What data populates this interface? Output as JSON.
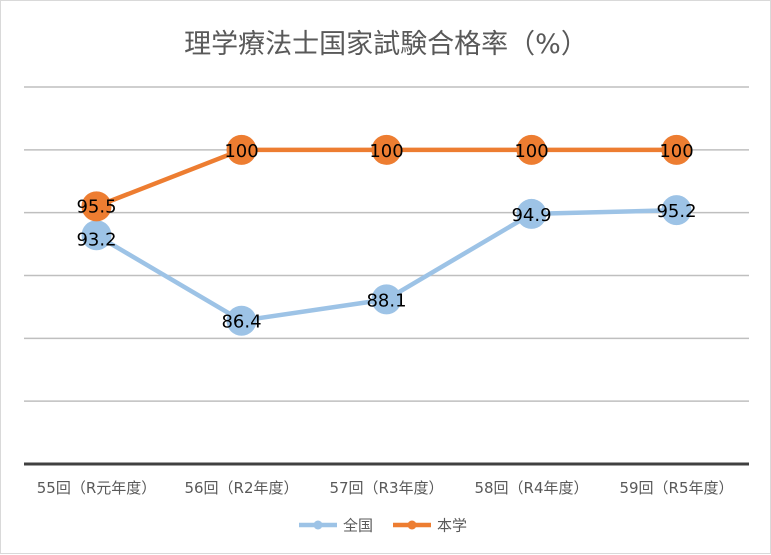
{
  "chart_data": {
    "type": "line",
    "title": "理学療法士国家試験合格率（%）",
    "categories": [
      "55回（R元年度）",
      "56回（R2年度）",
      "57回（R3年度）",
      "58回（R4年度）",
      "59回（R5年度）"
    ],
    "series": [
      {
        "name": "全国",
        "color": "#9dc3e6",
        "values": [
          93.2,
          86.4,
          88.1,
          94.9,
          95.2
        ]
      },
      {
        "name": "本学",
        "color": "#ed7d31",
        "values": [
          95.5,
          100,
          100,
          100,
          100
        ]
      }
    ],
    "ylim": [
      75,
      105
    ],
    "y_gridlines": [
      80,
      85,
      90,
      95,
      100,
      105
    ],
    "y_tick_labels_shown": false,
    "grid": true,
    "legend_position": "bottom"
  }
}
